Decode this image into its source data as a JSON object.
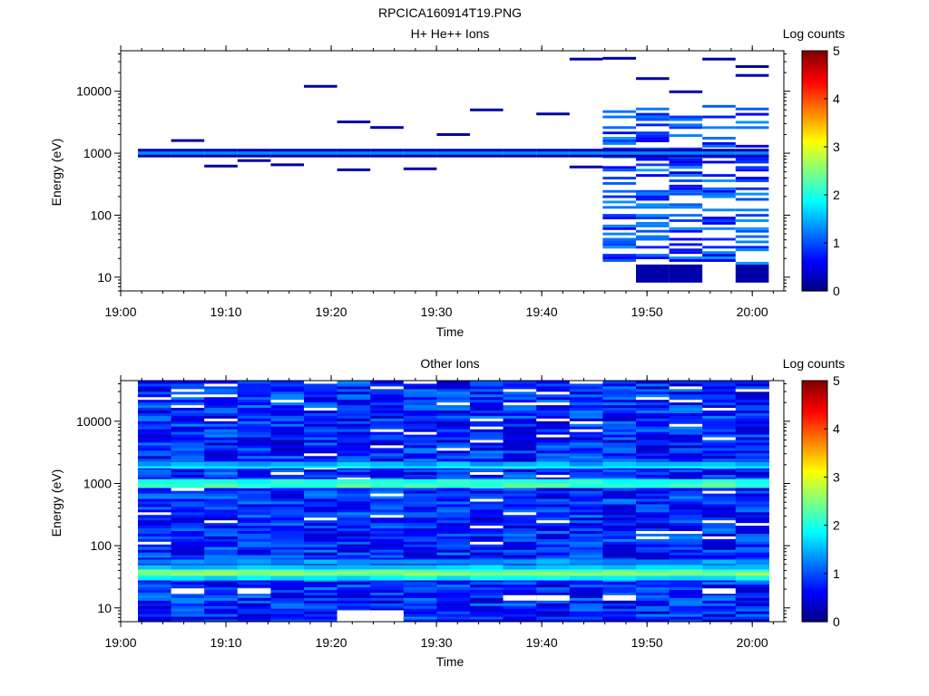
{
  "figure_title": "RPCICA160914T19.PNG",
  "chart_data": [
    {
      "type": "heatmap",
      "title": "H+ He++ Ions",
      "xlabel": "Time",
      "ylabel": "Energy (eV)",
      "y_scale": "log",
      "xlim": [
        "19:00",
        "20:03"
      ],
      "ylim": [
        6,
        45000
      ],
      "x_ticks": [
        "19:00",
        "19:10",
        "19:20",
        "19:30",
        "19:40",
        "19:50",
        "20:00"
      ],
      "y_ticks": [
        "10",
        "100",
        "1000",
        "10000"
      ],
      "colorbar": {
        "label": "Log counts",
        "range": [
          0,
          5
        ],
        "ticks": [
          "0",
          "1",
          "2",
          "3",
          "4",
          "5"
        ],
        "colormap": "jet"
      },
      "time_bins": [
        "19:01:30",
        "19:04:45",
        "19:08:00",
        "19:11:15",
        "19:14:30",
        "19:17:45",
        "19:21:00",
        "19:24:15",
        "19:27:30",
        "19:30:45",
        "19:34:00",
        "19:37:15",
        "19:40:30",
        "19:43:45",
        "19:47:00",
        "19:50:15",
        "19:53:30",
        "19:56:45",
        "20:00:00"
      ],
      "bands": [
        {
          "t0": 0,
          "t1": 19,
          "e": 1000,
          "v": 1.3,
          "thick": 1
        },
        {
          "t0": 0,
          "t1": 19,
          "e": 1120,
          "v": 0.3,
          "thick": 1
        },
        {
          "t0": 0,
          "t1": 19,
          "e": 900,
          "v": 0.25,
          "thick": 1
        },
        {
          "t0": 1,
          "t1": 2,
          "e": 1600,
          "v": 0.2,
          "thick": 1
        },
        {
          "t0": 2,
          "t1": 3,
          "e": 620,
          "v": 0.2,
          "thick": 1
        },
        {
          "t0": 3,
          "t1": 4,
          "e": 760,
          "v": 0.2,
          "thick": 1
        },
        {
          "t0": 4,
          "t1": 5,
          "e": 650,
          "v": 0.2,
          "thick": 1
        },
        {
          "t0": 5,
          "t1": 6,
          "e": 12000,
          "v": 0.2,
          "thick": 1
        },
        {
          "t0": 6,
          "t1": 7,
          "e": 540,
          "v": 0.2,
          "thick": 1
        },
        {
          "t0": 6,
          "t1": 7,
          "e": 3200,
          "v": 0.2,
          "thick": 1
        },
        {
          "t0": 7,
          "t1": 8,
          "e": 2600,
          "v": 0.2,
          "thick": 1
        },
        {
          "t0": 8,
          "t1": 9,
          "e": 560,
          "v": 0.2,
          "thick": 1
        },
        {
          "t0": 9,
          "t1": 10,
          "e": 2000,
          "v": 0.2,
          "thick": 1
        },
        {
          "t0": 10,
          "t1": 11,
          "e": 5000,
          "v": 0.2,
          "thick": 1
        },
        {
          "t0": 12,
          "t1": 13,
          "e": 4300,
          "v": 0.2,
          "thick": 1
        },
        {
          "t0": 13,
          "t1": 14,
          "e": 33000,
          "v": 0.2,
          "thick": 1
        },
        {
          "t0": 13,
          "t1": 14,
          "e": 600,
          "v": 0.2,
          "thick": 1
        },
        {
          "t0": 14,
          "t1": 15,
          "e": 34000,
          "v": 0.2,
          "thick": 1
        },
        {
          "t0": 15,
          "t1": 16,
          "e": 16000,
          "v": 0.2,
          "thick": 1
        },
        {
          "t0": 16,
          "t1": 17,
          "e": 9800,
          "v": 0.2,
          "thick": 1
        },
        {
          "t0": 17,
          "t1": 18,
          "e": 33000,
          "v": 0.2,
          "thick": 1
        },
        {
          "t0": 18,
          "t1": 19,
          "e": 25000,
          "v": 0.2,
          "thick": 1
        },
        {
          "t0": 18,
          "t1": 19,
          "e": 18000,
          "v": 0.2,
          "thick": 1
        }
      ],
      "active_region": {
        "t0": 14,
        "t1": 19,
        "emin": 16,
        "emax": 6000,
        "v": 0.5
      },
      "active_low": [
        {
          "t0": 15,
          "t1": 17,
          "emin": 10,
          "emax": 16,
          "v": 0.2
        },
        {
          "t0": 18,
          "t1": 19,
          "emin": 10,
          "emax": 16,
          "v": 0.2
        }
      ]
    },
    {
      "type": "heatmap",
      "title": "Other Ions",
      "xlabel": "Time",
      "ylabel": "Energy (eV)",
      "y_scale": "log",
      "xlim": [
        "19:00",
        "20:03"
      ],
      "ylim": [
        6,
        45000
      ],
      "x_ticks": [
        "19:00",
        "19:10",
        "19:20",
        "19:30",
        "19:40",
        "19:50",
        "20:00"
      ],
      "y_ticks": [
        "10",
        "100",
        "1000",
        "10000"
      ],
      "colorbar": {
        "label": "Log counts",
        "range": [
          0,
          5
        ],
        "ticks": [
          "0",
          "1",
          "2",
          "3",
          "4",
          "5"
        ],
        "colormap": "jet"
      },
      "time_bins": [
        "19:01:30",
        "19:04:45",
        "19:08:00",
        "19:11:15",
        "19:14:30",
        "19:17:45",
        "19:21:00",
        "19:24:15",
        "19:27:30",
        "19:30:45",
        "19:34:00",
        "19:37:15",
        "19:40:30",
        "19:43:45",
        "19:47:00",
        "19:50:15",
        "19:53:30",
        "19:56:45",
        "20:00:00"
      ],
      "background": {
        "emin": 6,
        "emax": 45000,
        "v_range": [
          0.3,
          1.3
        ]
      },
      "bands": [
        {
          "e": 1000,
          "v": 2.7
        },
        {
          "e": 920,
          "v": 2.2
        },
        {
          "e": 1080,
          "v": 2.0
        },
        {
          "e": 1900,
          "v": 1.9
        },
        {
          "e": 2050,
          "v": 1.5
        },
        {
          "e": 36,
          "v": 2.9
        },
        {
          "e": 33,
          "v": 2.5
        },
        {
          "e": 40,
          "v": 2.3
        },
        {
          "e": 30,
          "v": 1.8
        },
        {
          "e": 45,
          "v": 1.6
        },
        {
          "e": 55,
          "v": 1.4
        }
      ],
      "low_energy_gaps": [
        {
          "t": 1,
          "e": 18
        },
        {
          "t": 3,
          "e": 18
        },
        {
          "t": 6,
          "e": 8
        },
        {
          "t": 7,
          "e": 8
        },
        {
          "t": 11,
          "e": 14
        },
        {
          "t": 12,
          "e": 14
        },
        {
          "t": 14,
          "e": 14
        },
        {
          "t": 17,
          "e": 18
        }
      ]
    }
  ]
}
